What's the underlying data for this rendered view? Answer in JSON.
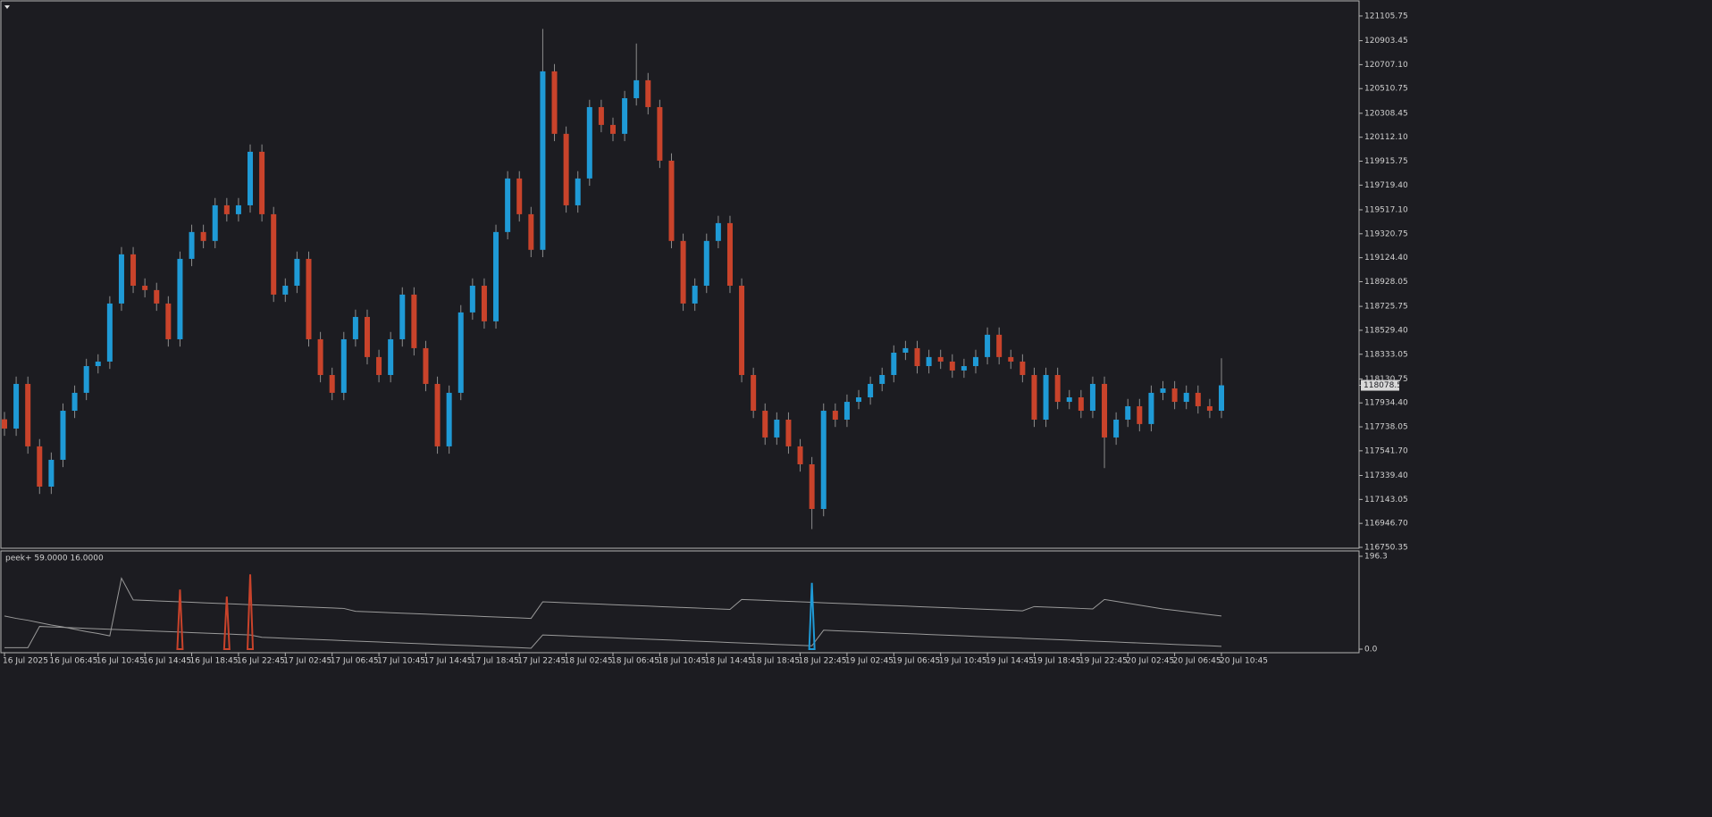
{
  "chart_data": [
    {
      "type": "candlestick",
      "categories": [
        "16 Jul 2025",
        null,
        null,
        null,
        "16 Jul 06:45",
        null,
        null,
        null,
        "16 Jul 10:45",
        null,
        null,
        null,
        "16 Jul 14:45",
        null,
        null,
        null,
        "16 Jul 18:45",
        null,
        null,
        null,
        "16 Jul 22:45",
        null,
        null,
        null,
        "17 Jul 02:45",
        null,
        null,
        null,
        "17 Jul 06:45",
        null,
        null,
        null,
        "17 Jul 10:45",
        null,
        null,
        null,
        "17 Jul 14:45",
        null,
        null,
        null,
        "17 Jul 18:45",
        null,
        null,
        null,
        "17 Jul 22:45",
        null,
        null,
        null,
        "18 Jul 02:45",
        null,
        null,
        null,
        "18 Jul 06:45",
        null,
        null,
        null,
        "18 Jul 10:45",
        null,
        null,
        null,
        "18 Jul 14:45",
        null,
        null,
        null,
        "18 Jul 18:45",
        null,
        null,
        null,
        "18 Jul 22:45",
        null,
        null,
        null,
        "19 Jul 02:45",
        null,
        null,
        null,
        "19 Jul 06:45",
        null,
        null,
        null,
        "19 Jul 10:45",
        null,
        null,
        null,
        "19 Jul 14:45",
        null,
        null,
        null,
        "19 Jul 18:45",
        null,
        null,
        null,
        "19 Jul 22:45",
        null,
        null,
        null,
        "20 Jul 02:45",
        null,
        null,
        null,
        "20 Jul 06:45",
        null,
        null,
        null,
        "20 Jul 10:45"
      ],
      "open": [
        117800,
        117724,
        118090,
        117578,
        117248,
        117468,
        117870,
        118017,
        118236,
        118273,
        118749,
        119152,
        118895,
        118859,
        118749,
        118456,
        119115,
        119335,
        119262,
        119554,
        119481,
        119554,
        119993,
        119481,
        118822,
        118895,
        119115,
        118456,
        118163,
        118017,
        118456,
        118639,
        118310,
        118163,
        118456,
        118822,
        118383,
        118090,
        117578,
        118017,
        118676,
        118895,
        118603,
        119335,
        119774,
        119481,
        119189,
        120652,
        120140,
        119554,
        119774,
        120359,
        120213,
        120140,
        120432,
        120579,
        120359,
        119920,
        119262,
        118749,
        118895,
        119262,
        119408,
        118895,
        118163,
        117870,
        117651,
        117797,
        117578,
        117431,
        117065,
        117870,
        117797,
        117943,
        117980,
        118090,
        118163,
        118346,
        118383,
        118236,
        118310,
        118273,
        118200,
        118236,
        118310,
        118493,
        118310,
        118273,
        118163,
        117797,
        118163,
        117943,
        117980,
        117870,
        118090,
        117651,
        117797,
        117907,
        117761,
        118017,
        118053,
        117943,
        118017,
        117907,
        117870
      ],
      "high": [
        117860,
        118150,
        118150,
        117638,
        117528,
        117930,
        118077,
        118296,
        118333,
        118809,
        119212,
        119212,
        118955,
        118919,
        118809,
        119175,
        119395,
        119395,
        119614,
        119614,
        119614,
        120053,
        120053,
        119541,
        118955,
        119175,
        119175,
        118516,
        118223,
        118516,
        118699,
        118699,
        118370,
        118516,
        118882,
        118882,
        118443,
        118150,
        118077,
        118736,
        118955,
        118955,
        119395,
        119834,
        119834,
        119541,
        121000,
        120712,
        120200,
        119834,
        120419,
        120419,
        120273,
        120492,
        120880,
        120639,
        120419,
        119980,
        119322,
        118955,
        119322,
        119468,
        119468,
        118955,
        118223,
        117930,
        117857,
        117857,
        117638,
        117491,
        117930,
        117930,
        118003,
        118040,
        118150,
        118223,
        118406,
        118443,
        118443,
        118370,
        118370,
        118333,
        118296,
        118370,
        118553,
        118553,
        118370,
        118333,
        118223,
        118223,
        118223,
        118040,
        118040,
        118150,
        118150,
        117857,
        117967,
        117967,
        118077,
        118113,
        118113,
        118077,
        118077,
        117967,
        118300
      ],
      "low": [
        117664,
        117664,
        117518,
        117188,
        117188,
        117408,
        117810,
        117957,
        118176,
        118213,
        118689,
        118835,
        118799,
        118689,
        118396,
        118396,
        119055,
        119202,
        119202,
        119421,
        119421,
        119494,
        119421,
        118762,
        118762,
        118835,
        118396,
        118103,
        117957,
        117957,
        118396,
        118250,
        118103,
        118103,
        118396,
        118323,
        118030,
        117518,
        117518,
        117957,
        118616,
        118543,
        118543,
        119275,
        119421,
        119129,
        119129,
        120080,
        119494,
        119494,
        119714,
        120153,
        120080,
        120080,
        120372,
        120299,
        119860,
        119202,
        118689,
        118689,
        118835,
        119202,
        118835,
        118103,
        117810,
        117591,
        117591,
        117518,
        117371,
        116900,
        117005,
        117737,
        117737,
        117883,
        117920,
        118030,
        118103,
        118286,
        118176,
        118176,
        118213,
        118140,
        118140,
        118176,
        118250,
        118250,
        118213,
        118103,
        117737,
        117737,
        117883,
        117883,
        117810,
        117810,
        117400,
        117591,
        117737,
        117701,
        117701,
        117957,
        117883,
        117883,
        117847,
        117810,
        117810
      ],
      "close": [
        117724,
        118090,
        117578,
        117248,
        117468,
        117870,
        118017,
        118236,
        118273,
        118749,
        119152,
        118895,
        118859,
        118749,
        118456,
        119115,
        119335,
        119262,
        119554,
        119481,
        119554,
        119993,
        119481,
        118822,
        118895,
        119115,
        118456,
        118163,
        118017,
        118456,
        118639,
        118310,
        118163,
        118456,
        118822,
        118383,
        118090,
        117578,
        118017,
        118676,
        118895,
        118603,
        119335,
        119774,
        119481,
        119189,
        120652,
        120140,
        119554,
        119774,
        120359,
        120213,
        120140,
        120432,
        120579,
        120359,
        119920,
        119262,
        118749,
        118895,
        119262,
        119408,
        118895,
        118163,
        117870,
        117651,
        117797,
        117578,
        117431,
        117065,
        117870,
        117797,
        117943,
        117980,
        118090,
        118163,
        118346,
        118383,
        118236,
        118310,
        118273,
        118200,
        118236,
        118310,
        118493,
        118310,
        118273,
        118163,
        117797,
        118163,
        117943,
        117980,
        117870,
        118090,
        117651,
        117797,
        117907,
        117761,
        118017,
        118053,
        117943,
        118017,
        117907,
        117870,
        118078.51
      ],
      "up_color": "#1f9ad6",
      "down_color": "#c9432b",
      "wick_color": "#8c8c8c",
      "ylim": [
        116743,
        121215
      ],
      "yticks": [
        121105.75,
        120903.45,
        {
          "value": 120707.1,
          "label": "120707.10"
        },
        120510.75,
        120308.45,
        {
          "value": 120112.1,
          "label": "120112.10"
        },
        119915.75,
        {
          "value": 119719.4,
          "label": "119719.40"
        },
        {
          "value": 119517.1,
          "label": "119517.10"
        },
        119320.75,
        {
          "value": 119124.4,
          "label": "119124.40"
        },
        118928.05,
        118725.75,
        {
          "value": 118529.4,
          "label": "118529.40"
        },
        118333.05,
        118130.75,
        {
          "value": 117934.4,
          "label": "117934.40"
        },
        117738.05,
        {
          "value": 117541.7,
          "label": "117541.70"
        },
        {
          "value": 117339.4,
          "label": "117339.40"
        },
        117143.05,
        {
          "value": 116946.7,
          "label": "116946.70"
        },
        116750.35
      ],
      "last_price": 118078.51
    },
    {
      "type": "line",
      "title": "peek+ 59.0000 16.0000",
      "ylim": [
        0,
        196.3
      ],
      "yticks": [
        196.3,
        {
          "value": 0,
          "label": "0.0"
        }
      ],
      "series": [
        {
          "color": "#9a9a9a",
          "values": [
            70,
            65,
            61,
            56,
            51,
            47,
            42,
            37,
            33,
            28,
            150,
            104,
            103,
            102,
            101,
            100,
            99,
            98,
            97,
            96,
            95,
            94,
            93,
            92,
            91,
            90,
            89,
            88,
            87,
            86,
            80,
            79,
            78,
            77,
            76,
            75,
            74,
            73,
            72,
            71,
            70,
            69,
            68,
            67,
            66,
            65,
            100,
            99,
            98,
            97,
            96,
            95,
            94,
            93,
            92,
            91,
            90,
            89,
            88,
            87,
            86,
            85,
            84,
            105,
            104,
            103,
            102,
            101,
            100,
            99,
            98,
            97,
            96,
            95,
            94,
            93,
            92,
            91,
            90,
            89,
            88,
            87,
            86,
            85,
            84,
            83,
            82,
            81,
            90,
            89,
            88,
            87,
            86,
            85,
            105,
            101,
            97,
            93,
            89,
            85,
            82,
            79,
            76,
            73,
            70
          ]
        },
        {
          "color": "#9a9a9a",
          "values": [
            3,
            3,
            3,
            48,
            47,
            46,
            45,
            44,
            43,
            42,
            41,
            40,
            39,
            38,
            37,
            36,
            35,
            34,
            33,
            32,
            31,
            30,
            25,
            24,
            23,
            22,
            21,
            20,
            19,
            18,
            17,
            16,
            15,
            14,
            13,
            12,
            11,
            10,
            9,
            8,
            7,
            6,
            5,
            4,
            3,
            2,
            30,
            29,
            28,
            27,
            26,
            25,
            24,
            23,
            22,
            21,
            20,
            19,
            18,
            17,
            16,
            15,
            14,
            13,
            12,
            11,
            10,
            9,
            8,
            7,
            40,
            39,
            38,
            37,
            36,
            35,
            34,
            33,
            32,
            31,
            30,
            29,
            28,
            27,
            26,
            25,
            24,
            23,
            22,
            21,
            20,
            19,
            18,
            17,
            16,
            15,
            14,
            13,
            12,
            11,
            10,
            9,
            8,
            7,
            6
          ]
        },
        {
          "color": "#c9432b",
          "style": "spike",
          "values": [
            null,
            null,
            null,
            null,
            null,
            null,
            null,
            null,
            null,
            null,
            null,
            null,
            null,
            null,
            null,
            126,
            null,
            null,
            null,
            111,
            null,
            158,
            null,
            null,
            null,
            null,
            null,
            null,
            null,
            null,
            null,
            null,
            null,
            null,
            null,
            null,
            null,
            null,
            null,
            null,
            null,
            null,
            null,
            null,
            null,
            null,
            null,
            null,
            null,
            null,
            null,
            null,
            null,
            null,
            null,
            null,
            null,
            null,
            null,
            null,
            null,
            null,
            null,
            null,
            null,
            null,
            null,
            null,
            null,
            null,
            null,
            null,
            null,
            null,
            null,
            null,
            null,
            null,
            null,
            null,
            null,
            null,
            null,
            null,
            null,
            null,
            null,
            null,
            null,
            null,
            null,
            null,
            null,
            null,
            null,
            null,
            null,
            null,
            null,
            null,
            null,
            null,
            null,
            null,
            null
          ]
        },
        {
          "color": "#1f9ad6",
          "style": "spike",
          "values": [
            null,
            null,
            null,
            null,
            null,
            null,
            null,
            null,
            null,
            null,
            null,
            null,
            null,
            null,
            null,
            null,
            null,
            null,
            null,
            null,
            null,
            null,
            null,
            null,
            null,
            null,
            null,
            null,
            null,
            null,
            null,
            null,
            null,
            null,
            null,
            null,
            null,
            null,
            null,
            null,
            null,
            null,
            null,
            null,
            null,
            null,
            null,
            null,
            null,
            null,
            null,
            null,
            null,
            null,
            null,
            null,
            null,
            null,
            null,
            null,
            null,
            null,
            null,
            null,
            null,
            null,
            null,
            null,
            null,
            140,
            null,
            null,
            null,
            null,
            null,
            null,
            null,
            null,
            null,
            null,
            null,
            null,
            null,
            null,
            null,
            null,
            null,
            null,
            null,
            null,
            null,
            null,
            null,
            null,
            null,
            null,
            null,
            null,
            null,
            null,
            null,
            null,
            null,
            null,
            null
          ]
        }
      ]
    }
  ]
}
